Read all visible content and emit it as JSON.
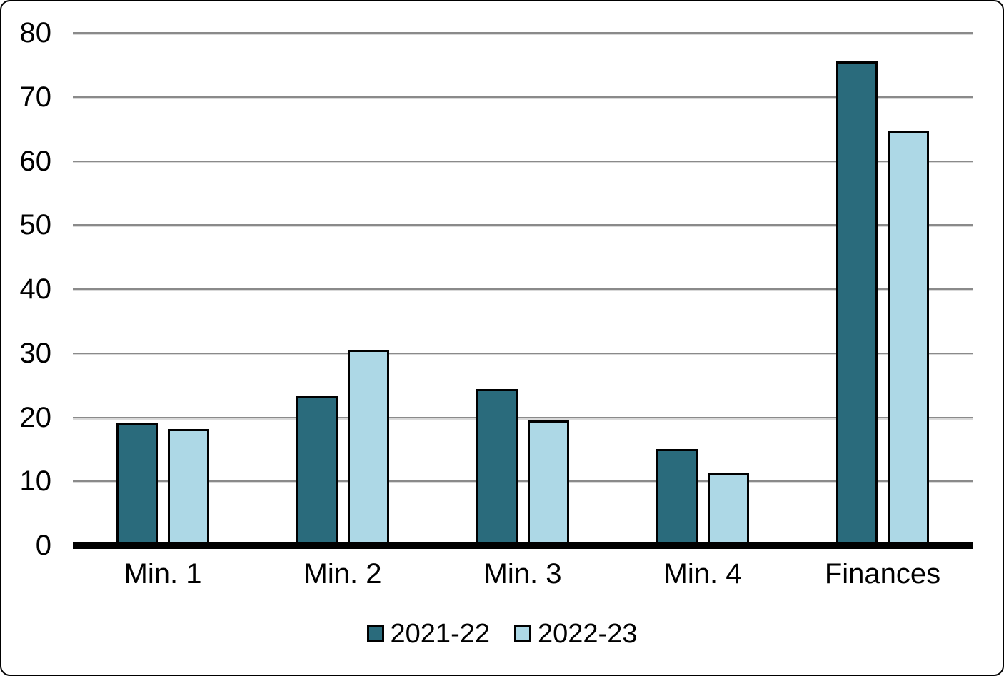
{
  "chart_data": {
    "type": "bar",
    "title": "",
    "xlabel": "",
    "ylabel": "",
    "categories": [
      "Min. 1",
      "Min. 2",
      "Min. 3",
      "Min. 4",
      "Finances"
    ],
    "series": [
      {
        "name": "2021-22",
        "color": "#2A6B7C",
        "values": [
          19.2,
          23.3,
          24.4,
          15.0,
          75.5
        ]
      },
      {
        "name": "2022-23",
        "color": "#ADD8E6",
        "values": [
          18.2,
          30.5,
          19.5,
          11.4,
          64.7
        ]
      }
    ],
    "ylim": [
      0,
      80
    ],
    "yticks": [
      0,
      10,
      20,
      30,
      40,
      50,
      60,
      70,
      80
    ],
    "grid": true,
    "gridline_color": "#8a8a8a",
    "axis_line_color": "#000000",
    "bar_border_color": "#000000",
    "legend_position": "bottom",
    "legend_labels": [
      "2021-22",
      "2022-23"
    ]
  },
  "colors": {
    "background": "#FFFFFF",
    "text": "#000000",
    "series_dark": "#2A6B7C",
    "series_light": "#ADD8E6"
  }
}
